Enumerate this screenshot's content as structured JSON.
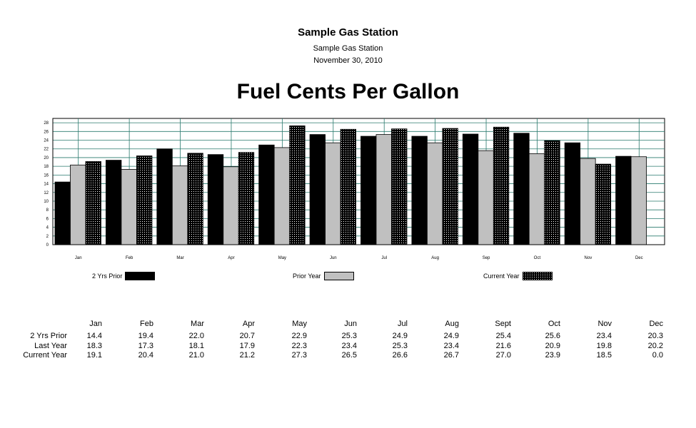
{
  "header": {
    "title": "Sample Gas Station",
    "subtitle": "Sample Gas Station",
    "date": "November 30, 2010",
    "chart_title": "Fuel Cents Per Gallon"
  },
  "colors": {
    "two_yrs_prior": "#000000",
    "prior_year": "#c0c0c0",
    "current_year": "#222222",
    "grid": "#2a7a6e"
  },
  "chart_data": {
    "type": "bar",
    "title": "Fuel Cents Per Gallon",
    "categories": [
      "Jan",
      "Feb",
      "Mar",
      "Apr",
      "May",
      "Jun",
      "Jul",
      "Aug",
      "Sep",
      "Oct",
      "Nov",
      "Dec"
    ],
    "ylim": [
      0,
      29
    ],
    "yticks": [
      0,
      2,
      4,
      6,
      8,
      10,
      12,
      14,
      16,
      18,
      20,
      22,
      24,
      26,
      28
    ],
    "grid": true,
    "legend_position": "bottom",
    "series": [
      {
        "name": "2 Yrs Prior",
        "values": [
          14.4,
          19.4,
          22.0,
          20.7,
          22.9,
          25.3,
          24.9,
          24.9,
          25.4,
          25.6,
          23.4,
          20.3
        ]
      },
      {
        "name": "Prior Year",
        "values": [
          18.3,
          17.3,
          18.1,
          17.9,
          22.3,
          23.4,
          25.3,
          23.4,
          21.6,
          20.9,
          19.8,
          20.2
        ]
      },
      {
        "name": "Current Year",
        "values": [
          19.1,
          20.4,
          21.0,
          21.2,
          27.3,
          26.5,
          26.6,
          26.7,
          27.0,
          23.9,
          18.5,
          0.0
        ]
      }
    ]
  },
  "table": {
    "columns": [
      "Jan",
      "Feb",
      "Mar",
      "Apr",
      "May",
      "Jun",
      "Jul",
      "Aug",
      "Sept",
      "Oct",
      "Nov",
      "Dec"
    ],
    "rows": [
      {
        "label": "2 Yrs Prior",
        "values": [
          "14.4",
          "19.4",
          "22.0",
          "20.7",
          "22.9",
          "25.3",
          "24.9",
          "24.9",
          "25.4",
          "25.6",
          "23.4",
          "20.3"
        ]
      },
      {
        "label": "Last Year",
        "values": [
          "18.3",
          "17.3",
          "18.1",
          "17.9",
          "22.3",
          "23.4",
          "25.3",
          "23.4",
          "21.6",
          "20.9",
          "19.8",
          "20.2"
        ]
      },
      {
        "label": "Current Year",
        "values": [
          "19.1",
          "20.4",
          "21.0",
          "21.2",
          "27.3",
          "26.5",
          "26.6",
          "26.7",
          "27.0",
          "23.9",
          "18.5",
          "0.0"
        ]
      }
    ]
  }
}
